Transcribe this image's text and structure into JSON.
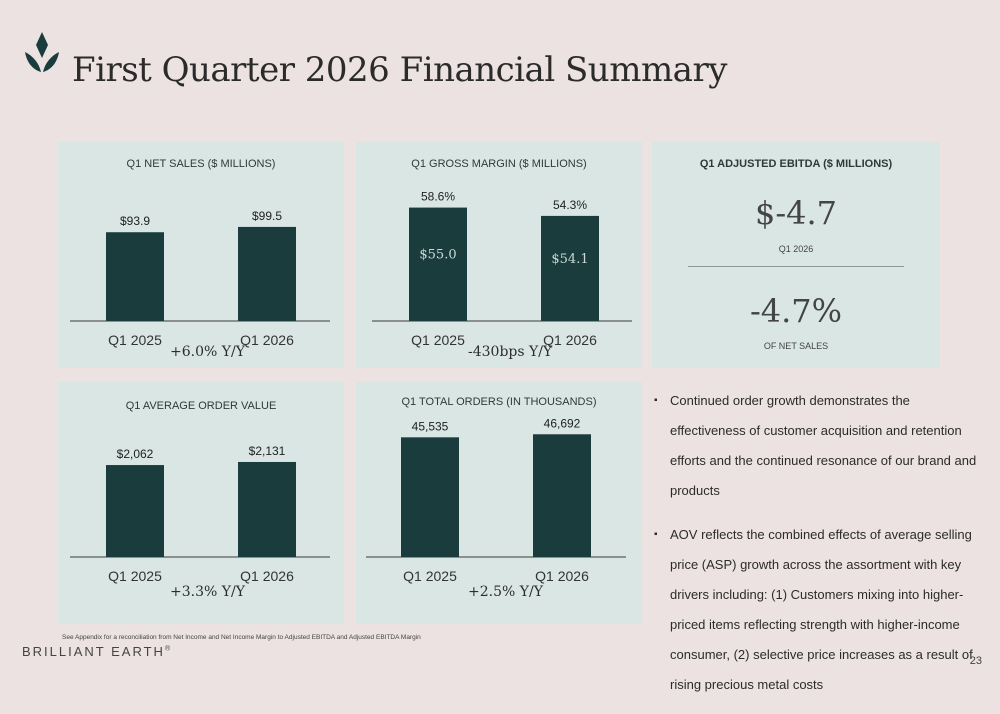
{
  "title": "First Quarter 2026 Financial Summary",
  "colors": {
    "bar": "#1b3c3d",
    "panel": "#d9e6e4",
    "background": "#ece2e1"
  },
  "charts": {
    "net_sales": {
      "title": "Q1 NET SALES ($ MILLIONS)",
      "yoy": "+6.0% Y/Y"
    },
    "gross_margin": {
      "title": "Q1 GROSS MARGIN ($ MILLIONS)",
      "yoy": "-430bps Y/Y"
    },
    "aov": {
      "title": "Q1 AVERAGE ORDER VALUE",
      "yoy": "+3.3% Y/Y"
    },
    "orders": {
      "title": "Q1 TOTAL ORDERS (IN THOUSANDS)",
      "yoy": "+2.5% Y/Y"
    }
  },
  "chart_data": [
    {
      "type": "bar",
      "title": "Q1 NET SALES ($ MILLIONS)",
      "categories": [
        "Q1 2025",
        "Q1 2026"
      ],
      "values": [
        93.9,
        99.5
      ],
      "labels": [
        "$93.9",
        "$99.5"
      ],
      "ylim": [
        0,
        110
      ]
    },
    {
      "type": "bar",
      "title": "Q1 GROSS MARGIN ($ MILLIONS)",
      "categories": [
        "Q1 2025",
        "Q1 2026"
      ],
      "values": [
        58.6,
        54.3
      ],
      "labels": [
        "58.6%",
        "54.3%"
      ],
      "inner_labels": [
        "$55.0",
        "$54.1"
      ],
      "ylim": [
        0,
        62
      ]
    },
    {
      "type": "bar",
      "title": "Q1 AVERAGE ORDER VALUE",
      "categories": [
        "Q1 2025",
        "Q1 2026"
      ],
      "values": [
        2062,
        2131
      ],
      "labels": [
        "$2,062",
        "$2,131"
      ],
      "ylim": [
        0,
        3050
      ]
    },
    {
      "type": "bar",
      "title": "Q1 TOTAL ORDERS (IN THOUSANDS)",
      "categories": [
        "Q1 2025",
        "Q1 2026"
      ],
      "values": [
        45535,
        46692
      ],
      "labels": [
        "45,535",
        "46,692"
      ],
      "ylim": [
        0,
        48700
      ]
    }
  ],
  "ebitda": {
    "title": "Q1 ADJUSTED EBITDA  ($ MILLIONS)",
    "value": "$-4.7",
    "value_caption": "Q1 2026",
    "margin": "-4.7%",
    "margin_caption": "OF NET SALES"
  },
  "bullets": [
    "Continued order growth demonstrates the effectiveness of customer acquisition and retention efforts and the continued resonance of our brand and products",
    "AOV reflects the combined effects of average selling price (ASP) growth across the assortment with key drivers including: (1) Customers mixing into higher-priced items reflecting strength with higher-income consumer, (2) selective price increases as a result of rising precious metal costs"
  ],
  "footnote": "See Appendix for a reconciliation from Net Income and Net Income Margin to Adjusted EBITDA and Adjusted EBITDA Margin",
  "brand": "BRILLIANT EARTH",
  "brand_mark": "®",
  "page_number": "23"
}
